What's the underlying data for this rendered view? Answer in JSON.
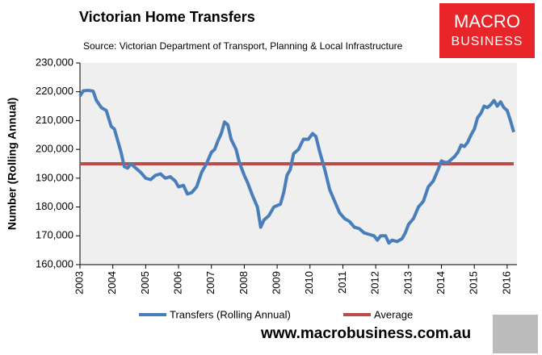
{
  "chart_data": {
    "type": "line",
    "title": "Victorian Home Transfers",
    "subtitle": "Source: Victorian Department of Transport, Planning & Local Infrastructure",
    "y_label": "Number (Rolling Annual)",
    "xlim": [
      2003,
      2016.2
    ],
    "xticks": [
      2003,
      2004,
      2005,
      2006,
      2007,
      2008,
      2009,
      2010,
      2011,
      2012,
      2013,
      2014,
      2015,
      2016
    ],
    "ylim": [
      160000,
      230000
    ],
    "yticks": [
      {
        "value": 160000,
        "label": "160,000"
      },
      {
        "value": 170000,
        "label": "170,000"
      },
      {
        "value": 180000,
        "label": "180,000"
      },
      {
        "value": 190000,
        "label": "190,000"
      },
      {
        "value": 200000,
        "label": "200,000"
      },
      {
        "value": 210000,
        "label": "210,000"
      },
      {
        "value": 220000,
        "label": "220,000"
      },
      {
        "value": 230000,
        "label": "230,000"
      }
    ],
    "grid": false,
    "legend": "bottom",
    "series": [
      {
        "name": "Transfers (Rolling Annual)",
        "color": "#4a7ebb",
        "x": [
          2003.0,
          2003.1,
          2003.25,
          2003.4,
          2003.5,
          2003.65,
          2003.8,
          2003.95,
          2004.05,
          2004.15,
          2004.25,
          2004.35,
          2004.45,
          2004.55,
          2004.7,
          2004.85,
          2005.0,
          2005.15,
          2005.3,
          2005.45,
          2005.6,
          2005.75,
          2005.9,
          2006.0,
          2006.15,
          2006.27,
          2006.4,
          2006.55,
          2006.7,
          2006.85,
          2007.0,
          2007.1,
          2007.2,
          2007.3,
          2007.4,
          2007.5,
          2007.6,
          2007.75,
          2007.85,
          2008.0,
          2008.1,
          2008.25,
          2008.4,
          2008.5,
          2008.6,
          2008.75,
          2008.9,
          2009.0,
          2009.1,
          2009.2,
          2009.3,
          2009.4,
          2009.5,
          2009.65,
          2009.8,
          2009.95,
          2010.08,
          2010.18,
          2010.3,
          2010.45,
          2010.6,
          2010.75,
          2010.9,
          2011.05,
          2011.2,
          2011.35,
          2011.5,
          2011.65,
          2011.8,
          2011.95,
          2012.05,
          2012.15,
          2012.3,
          2012.4,
          2012.5,
          2012.65,
          2012.8,
          2012.9,
          2013.0,
          2013.15,
          2013.3,
          2013.45,
          2013.6,
          2013.75,
          2013.9,
          2014.0,
          2014.1,
          2014.2,
          2014.3,
          2014.4,
          2014.5,
          2014.6,
          2014.7,
          2014.8,
          2014.9,
          2015.0,
          2015.1,
          2015.2,
          2015.3,
          2015.4,
          2015.5,
          2015.6,
          2015.7,
          2015.8,
          2015.9,
          2016.0,
          2016.1,
          2016.2
        ],
        "values": [
          218500,
          220300,
          220500,
          220200,
          217000,
          214500,
          213500,
          208000,
          207000,
          203000,
          199000,
          194000,
          193500,
          195000,
          193500,
          192000,
          190000,
          189500,
          191000,
          191500,
          190000,
          190500,
          189000,
          187000,
          187500,
          184500,
          185000,
          187000,
          192000,
          195000,
          199000,
          200000,
          203000,
          205500,
          209500,
          208500,
          203500,
          200000,
          195500,
          191000,
          188500,
          184000,
          180000,
          173000,
          175500,
          177000,
          180000,
          180500,
          181000,
          185000,
          191000,
          193000,
          198500,
          200000,
          203500,
          203500,
          205500,
          204500,
          199000,
          193000,
          186000,
          182000,
          178000,
          176000,
          175000,
          173000,
          172500,
          171000,
          170500,
          170000,
          168500,
          170000,
          170000,
          167500,
          168500,
          168000,
          169000,
          171000,
          174000,
          176000,
          180000,
          182000,
          187000,
          189000,
          193000,
          196000,
          195500,
          195500,
          196500,
          197500,
          199000,
          201500,
          201000,
          202500,
          205000,
          207000,
          211000,
          212500,
          215000,
          214500,
          215500,
          217000,
          215000,
          216500,
          214500,
          213500,
          210000,
          206000
        ]
      },
      {
        "name": "Average",
        "color": "#be4b48",
        "x": [
          2003,
          2016.2
        ],
        "values": [
          195000,
          195000
        ]
      }
    ]
  },
  "logo": {
    "line1": "MACRO",
    "line2": "BUSINESS"
  },
  "footer": "www.macrobusiness.com.au"
}
